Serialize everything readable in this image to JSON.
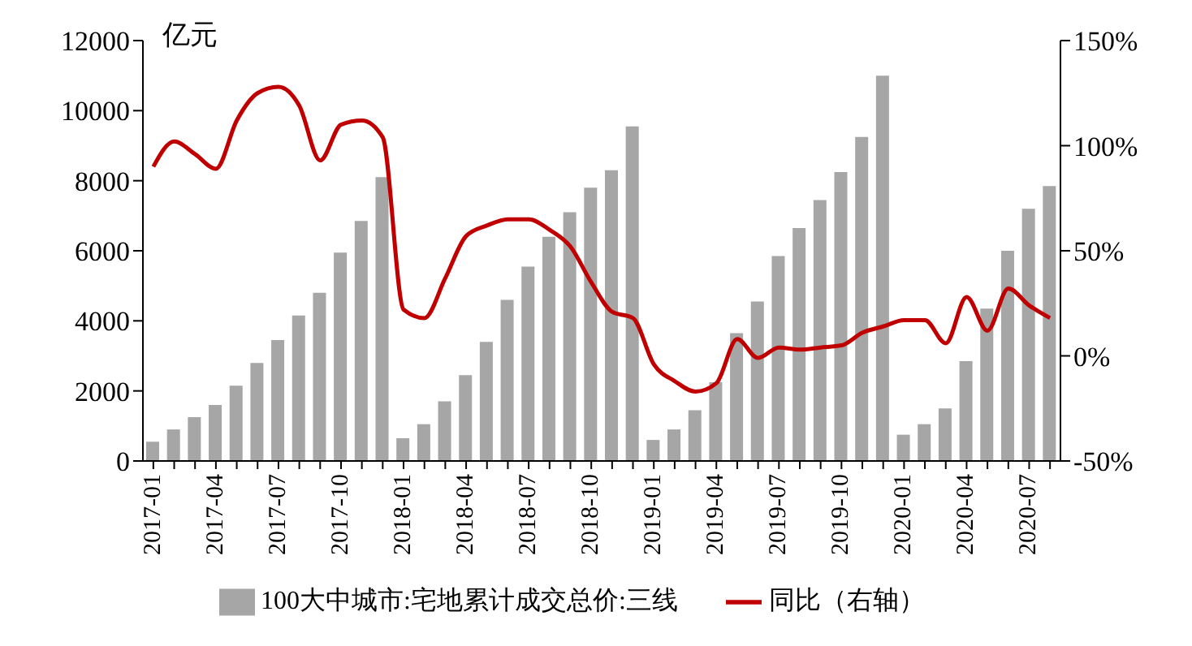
{
  "chart_data": {
    "type": "bar",
    "ylabel": "亿元",
    "categories": [
      "2017-01",
      null,
      null,
      "2017-04",
      null,
      null,
      "2017-07",
      null,
      null,
      "2017-10",
      null,
      null,
      "2018-01",
      null,
      null,
      "2018-04",
      null,
      null,
      "2018-07",
      null,
      null,
      "2018-10",
      null,
      null,
      "2019-01",
      null,
      null,
      "2019-04",
      null,
      null,
      "2019-07",
      null,
      null,
      "2019-10",
      null,
      null,
      "2020-01",
      null,
      null,
      "2020-04",
      null,
      null,
      "2020-07",
      null
    ],
    "series": [
      {
        "name": "100大中城市:宅地累计成交总价:三线",
        "color": "#a6a6a6",
        "values": [
          550,
          900,
          1250,
          1600,
          2150,
          2800,
          3450,
          4150,
          4800,
          5950,
          6850,
          8100,
          650,
          1050,
          1700,
          2450,
          3400,
          4600,
          5550,
          6400,
          7100,
          7800,
          8300,
          9550,
          600,
          900,
          1450,
          2250,
          3650,
          4550,
          5850,
          6650,
          7450,
          8250,
          9250,
          11000,
          750,
          1050,
          1500,
          2850,
          4350,
          6000,
          7200,
          7850
        ]
      },
      {
        "name": "同比（右轴）",
        "type": "line",
        "axis": "y2",
        "color": "#c00000",
        "values": [
          90,
          102,
          96,
          89,
          112,
          125,
          128,
          119,
          93,
          110,
          112,
          104,
          22,
          18,
          37,
          57,
          62,
          65,
          65,
          60,
          52,
          35,
          21,
          18,
          -4,
          -12,
          -17,
          -13,
          8,
          -1,
          4,
          3,
          4,
          5,
          11,
          14,
          17,
          17,
          6,
          28,
          12,
          32,
          24,
          18
        ]
      }
    ],
    "ylim": [
      0,
      12000
    ],
    "yticks": [
      0,
      2000,
      4000,
      6000,
      8000,
      10000,
      12000
    ],
    "y2lim": [
      -50,
      150
    ],
    "y2ticks": [
      {
        "value": -50,
        "label": "-50%"
      },
      {
        "value": 0,
        "label": "0%"
      },
      {
        "value": 50,
        "label": "50%"
      },
      {
        "value": 100,
        "label": "100%"
      },
      {
        "value": 150,
        "label": "150%"
      }
    ],
    "legend": "bottom",
    "grid": false,
    "marker": "none"
  }
}
